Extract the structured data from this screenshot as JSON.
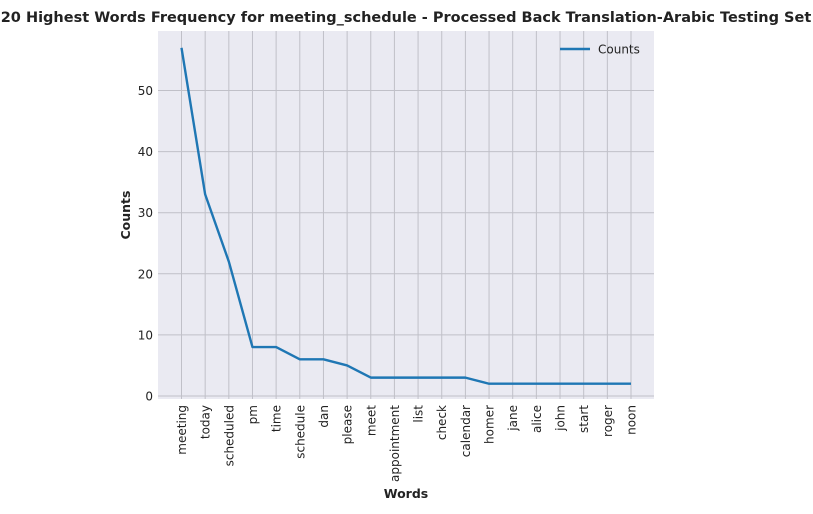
{
  "chart_data": {
    "type": "line",
    "title": "20 Highest Words Frequency for meeting_schedule - Processed Back Translation-Arabic Testing Set",
    "xlabel": "Words",
    "ylabel": "Counts",
    "categories": [
      "meeting",
      "today",
      "scheduled",
      "pm",
      "time",
      "schedule",
      "dan",
      "please",
      "meet",
      "appointment",
      "list",
      "check",
      "calendar",
      "homer",
      "jane",
      "alice",
      "john",
      "start",
      "roger",
      "noon"
    ],
    "series": [
      {
        "name": "Counts",
        "values": [
          57,
          33,
          22,
          8,
          8,
          6,
          6,
          5,
          3,
          3,
          3,
          3,
          3,
          2,
          2,
          2,
          2,
          2,
          2,
          2
        ]
      }
    ],
    "yticks": [
      0,
      10,
      20,
      30,
      40,
      50
    ],
    "ylim": [
      -0.5,
      59.75
    ],
    "grid": true,
    "legend": "top-right",
    "colors": {
      "line": "#1f77b4",
      "plot_bg": "#eaeaf2",
      "grid": "#c0c0c8"
    }
  }
}
